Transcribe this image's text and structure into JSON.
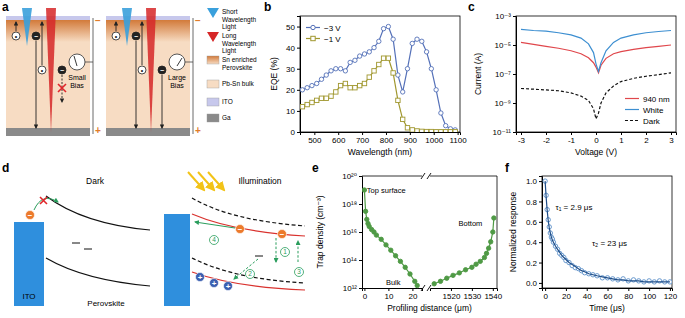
{
  "chart_data": [
    {
      "panel": "b",
      "type": "line",
      "x_label": "Wavelength (nm)",
      "y_label": "EQE (%)",
      "xlim": [
        440,
        1110
      ],
      "xticks": [
        500,
        600,
        700,
        800,
        900,
        1000,
        1100
      ],
      "ylim": [
        0,
        55
      ],
      "yticks": [
        0,
        10,
        20,
        30,
        40,
        50
      ],
      "legend": "upper left",
      "x": [
        450,
        470,
        490,
        510,
        530,
        550,
        570,
        590,
        610,
        630,
        650,
        670,
        690,
        710,
        730,
        750,
        770,
        790,
        810,
        830,
        850,
        870,
        890,
        910,
        930,
        950,
        970,
        990,
        1010,
        1030,
        1050,
        1070,
        1090
      ],
      "series": [
        {
          "name": "−3 V",
          "color": "#5470b8",
          "marker": "circle",
          "values": [
            20,
            21,
            22,
            23,
            25,
            27,
            29,
            30,
            30,
            29,
            33,
            34,
            36,
            37,
            38,
            40,
            43,
            49,
            50,
            44,
            27,
            19,
            30,
            42,
            44,
            43,
            38,
            30,
            20,
            9,
            3,
            1.5,
            1
          ]
        },
        {
          "name": "−1 V",
          "color": "#a0972e",
          "marker": "square",
          "values": [
            12,
            13,
            14,
            15,
            16,
            16,
            17,
            19,
            22,
            23,
            21,
            21,
            22,
            23,
            26,
            29,
            32,
            35,
            35,
            28,
            15,
            6,
            2,
            1,
            0.5,
            0.3,
            0.2,
            0.2,
            0.1,
            0.1,
            0.1,
            0.1,
            0.1
          ]
        }
      ]
    },
    {
      "panel": "c",
      "type": "line",
      "x_label": "Voltage (V)",
      "y_label": "Current (A)",
      "log": "y",
      "xlim": [
        -3.2,
        3.2
      ],
      "xticks": [
        -3,
        -2,
        -1,
        0,
        1,
        2,
        3
      ],
      "ylim": [
        1e-11,
        0.001
      ],
      "yticks": [
        {
          "value": 1e-11,
          "label": "10⁻¹¹"
        },
        {
          "value": 1e-09,
          "label": "10⁻⁹"
        },
        {
          "value": 1e-07,
          "label": "10⁻⁷"
        },
        {
          "value": 1e-05,
          "label": "10⁻⁵"
        },
        {
          "value": 0.001,
          "label": "10⁻³"
        }
      ],
      "legend": "lower right",
      "x": [
        -3,
        -2.5,
        -2,
        -1.5,
        -1,
        -0.6,
        -0.3,
        -0.1,
        0,
        0.1,
        0.2,
        0.4,
        0.7,
        1,
        1.5,
        2,
        2.5,
        3
      ],
      "series": [
        {
          "name": "940 nm",
          "color": "#e0474c",
          "line_style": "solid",
          "values": [
            1.5e-05,
            1.1e-05,
            8e-06,
            6e-06,
            4e-06,
            2.5e-06,
            1.3e-06,
            6e-07,
            3e-07,
            1.2e-07,
            4e-07,
            1.2e-06,
            2.5e-06,
            3.5e-06,
            5e-06,
            6.5e-06,
            8e-06,
            1e-05
          ]
        },
        {
          "name": "White",
          "color": "#3d8fd1",
          "line_style": "solid",
          "values": [
            0.00012,
            0.0001,
            9e-05,
            7e-05,
            5e-05,
            3e-05,
            1.2e-05,
            3e-06,
            5e-07,
            1.5e-07,
            6e-07,
            4e-06,
            1.5e-05,
            3e-05,
            5e-05,
            7e-05,
            8.5e-05,
            0.0001
          ]
        },
        {
          "name": "Dark",
          "color": "#111111",
          "line_style": "dashed",
          "values": [
            1e-08,
            9e-09,
            8e-09,
            7e-09,
            5e-09,
            3e-09,
            1.5e-09,
            4e-10,
            8e-11,
            2e-10,
            1e-09,
            5e-09,
            1.5e-08,
            3e-08,
            5e-08,
            7e-08,
            9e-08,
            1.2e-07
          ]
        }
      ]
    },
    {
      "panel": "e",
      "type": "line",
      "x_label": "Profiling distance (μm)",
      "y_label": "Trap density (cm⁻³)",
      "log": "y",
      "color": "#4f9a45",
      "marker": "circle",
      "ylim": [
        1000000000000.0,
        1e+20
      ],
      "yticks": [
        {
          "value": 1000000000000.0,
          "label": "10¹²"
        },
        {
          "value": 100000000000000.0,
          "label": "10¹⁴"
        },
        {
          "value": 1e+16,
          "label": "10¹⁶"
        },
        {
          "value": 1e+18,
          "label": "10¹⁸"
        },
        {
          "value": 1e+20,
          "label": "10²⁰"
        }
      ],
      "annotations": [
        "Top surface",
        "Bulk",
        "Bottom"
      ],
      "segments": [
        {
          "xlim": [
            -1,
            24
          ],
          "xticks": [
            0,
            10,
            20
          ],
          "x": [
            0,
            0.5,
            1,
            1.5,
            2,
            3,
            4,
            5,
            7,
            9,
            11,
            13,
            15,
            17,
            19,
            21,
            22
          ],
          "values": [
            1e+19,
            3e+17,
            8e+16,
            4e+16,
            2.5e+16,
            1.5e+16,
            1e+16,
            6000000000000000.0,
            3000000000000000.0,
            1200000000000000.0,
            500000000000000.0,
            200000000000000.0,
            80000000000000.0,
            30000000000000.0,
            10000000000000.0,
            3000000000000.0,
            1500000000000.0
          ]
        },
        {
          "xlim": [
            1510,
            1542
          ],
          "xticks": [
            1520,
            1530,
            1540
          ],
          "x": [
            1512,
            1515,
            1518,
            1521,
            1524,
            1527,
            1530,
            1532,
            1534,
            1536,
            1537,
            1538,
            1539,
            1540,
            1540.5
          ],
          "values": [
            2000000000000.0,
            3000000000000.0,
            5000000000000.0,
            8000000000000.0,
            12000000000000.0,
            20000000000000.0,
            30000000000000.0,
            50000000000000.0,
            80000000000000.0,
            150000000000000.0,
            300000000000000.0,
            700000000000000.0,
            2000000000000000.0,
            1e+16,
            1e+17
          ]
        }
      ]
    },
    {
      "panel": "f",
      "type": "scatter",
      "x_label": "Time (μs)",
      "y_label": "Normalized response",
      "xlim": [
        -3,
        122
      ],
      "xticks": [
        0,
        20,
        40,
        60,
        80,
        100,
        120
      ],
      "ylim": [
        -0.05,
        1.05
      ],
      "yticks": [
        {
          "value": 0,
          "label": "0.0"
        },
        0.2,
        0.4,
        0.6,
        0.8,
        {
          "value": 1,
          "label": "1.0"
        }
      ],
      "annotations": [
        "τ₁ = 2.9 μs",
        "τ₂ = 23 μs"
      ],
      "x": [
        0,
        1,
        2,
        3,
        4,
        5,
        6,
        7,
        8,
        10,
        12,
        14,
        16,
        18,
        20,
        23,
        26,
        29,
        32,
        35,
        38,
        42,
        46,
        50,
        55,
        60,
        65,
        70,
        75,
        80,
        85,
        90,
        95,
        100,
        105,
        110,
        115,
        120
      ],
      "series": [
        {
          "type": "scatter",
          "marker": "circle",
          "color": "#5a8fc8",
          "values": [
            1.0,
            0.86,
            0.72,
            0.62,
            0.55,
            0.49,
            0.45,
            0.43,
            0.4,
            0.36,
            0.33,
            0.29,
            0.27,
            0.25,
            0.22,
            0.2,
            0.17,
            0.15,
            0.14,
            0.12,
            0.1,
            0.09,
            0.08,
            0.07,
            0.05,
            0.05,
            0.04,
            0.03,
            0.04,
            0.02,
            0.03,
            0.02,
            0.01,
            0.02,
            0.01,
            0.02,
            0.01,
            0.01
          ]
        },
        {
          "type": "line",
          "line_style": "solid",
          "color": "#1f4e89",
          "values": [
            1.0,
            0.84,
            0.71,
            0.61,
            0.54,
            0.49,
            0.45,
            0.42,
            0.4,
            0.36,
            0.33,
            0.3,
            0.27,
            0.25,
            0.23,
            0.2,
            0.18,
            0.16,
            0.14,
            0.12,
            0.11,
            0.09,
            0.08,
            0.07,
            0.06,
            0.05,
            0.04,
            0.03,
            0.03,
            0.02,
            0.02,
            0.02,
            0.01,
            0.01,
            0.01,
            0.01,
            0.01,
            0.01
          ]
        }
      ]
    }
  ],
  "diagrams": [
    {
      "panel": "a",
      "devices": [
        {
          "bias": "Small Bias"
        },
        {
          "bias": "Large Bias"
        }
      ],
      "key": [
        "Short Wavelength Light",
        "Long Wavelength Light",
        "Sn enriched Perovskite",
        "Pb-Sn bulk",
        "ITO",
        "Ga"
      ],
      "charges": {
        "electron": "−",
        "hole": "•"
      },
      "electrodes": {
        "top": "−",
        "bottom": "+"
      }
    },
    {
      "panel": "d",
      "views": [
        "Dark",
        "Illumination"
      ],
      "electrode": "ITO",
      "material": "Perovskite",
      "steps": [
        "1",
        "2",
        "3",
        "4"
      ],
      "charges": {
        "electron": "−",
        "hole": "+"
      }
    }
  ]
}
